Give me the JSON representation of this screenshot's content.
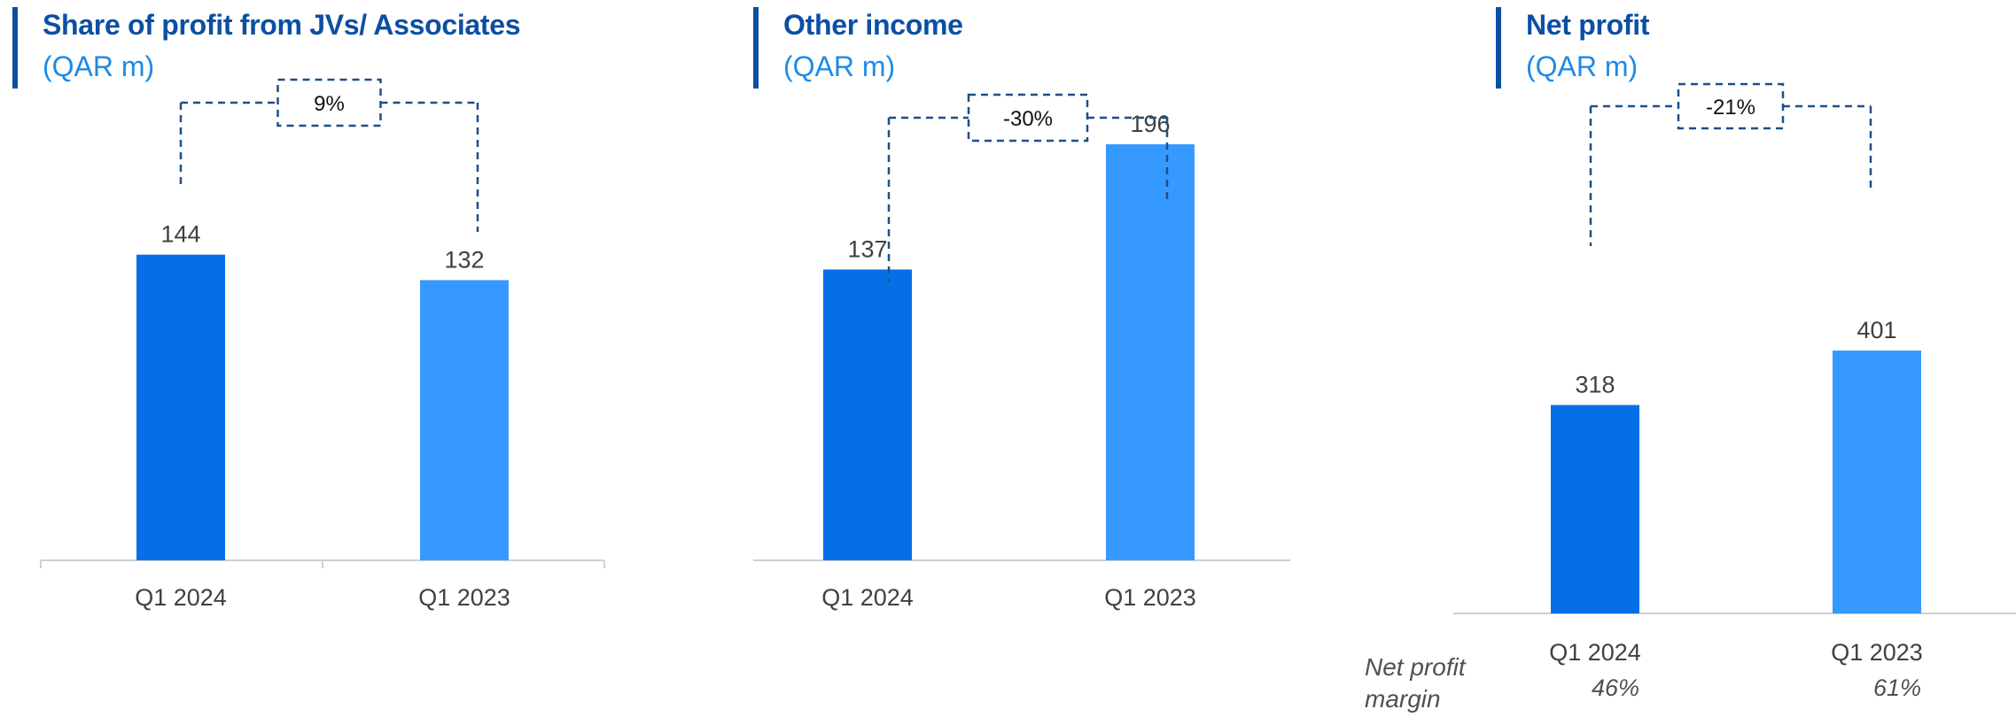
{
  "colors": {
    "accent_bar": "#0b4fa3",
    "title": "#0b4fa3",
    "subtitle": "#1e8ae6",
    "bar_current": "#0570e6",
    "bar_prior": "#3699ff",
    "dashed": "#1e4f8a"
  },
  "chart_data": [
    {
      "type": "bar",
      "title": "Share of profit from JVs/ Associates",
      "subtitle": "(QAR m)",
      "categories": [
        "Q1 2024",
        "Q1 2023"
      ],
      "values": [
        144,
        132
      ],
      "change_label": "9%"
    },
    {
      "type": "bar",
      "title": "Other income",
      "subtitle": "(QAR m)",
      "categories": [
        "Q1 2024",
        "Q1 2023"
      ],
      "values": [
        137,
        196
      ],
      "change_label": "-30%"
    },
    {
      "type": "bar",
      "title": "Net profit",
      "subtitle": "(QAR m)",
      "categories": [
        "Q1 2024",
        "Q1 2023"
      ],
      "values": [
        318,
        401
      ],
      "change_label": "-21%",
      "net_profit_margin_label": "Net profit margin",
      "net_profit_margin": [
        "46%",
        "61%"
      ]
    }
  ]
}
